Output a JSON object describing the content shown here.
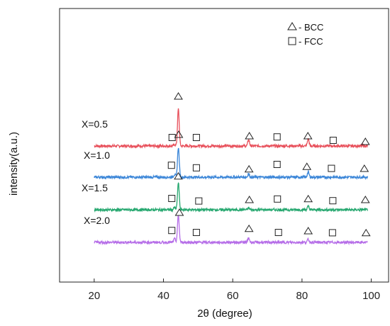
{
  "chart_data": {
    "type": "line",
    "xlabel": "2θ (degree)",
    "ylabel": "intensity(a.u.)",
    "xlim": [
      10,
      105
    ],
    "xticks": [
      20,
      40,
      60,
      80,
      100
    ],
    "grid": false,
    "legend_position": "top-right",
    "legend": [
      {
        "marker": "triangle",
        "label": "- BCC"
      },
      {
        "marker": "square",
        "label": "- FCC"
      }
    ],
    "x_range": [
      20,
      99
    ],
    "series": [
      {
        "name": "X=0.5",
        "color": "#e8505b",
        "baseline_offset": 3.4,
        "peaks": [
          {
            "x": 43.2,
            "height": 0.05
          },
          {
            "x": 44.3,
            "height": 1.3
          },
          {
            "x": 64.6,
            "height": 0.22
          },
          {
            "x": 81.8,
            "height": 0.25
          }
        ],
        "markers": [
          {
            "type": "square",
            "x": 42.5,
            "y": 0.1
          },
          {
            "type": "triangle",
            "x": 44.3,
            "y": 1.55
          },
          {
            "type": "square",
            "x": 49.5,
            "y": 0.1
          },
          {
            "type": "triangle",
            "x": 64.8,
            "y": 0.15
          },
          {
            "type": "square",
            "x": 72.8,
            "y": 0.12
          },
          {
            "type": "triangle",
            "x": 81.7,
            "y": 0.15
          },
          {
            "type": "square",
            "x": 89.0,
            "y": 0.0
          },
          {
            "type": "triangle",
            "x": 98.3,
            "y": -0.05
          }
        ]
      },
      {
        "name": "X=1.0",
        "color": "#3b86d8",
        "baseline_offset": 2.3,
        "peaks": [
          {
            "x": 43.2,
            "height": 0.1
          },
          {
            "x": 44.3,
            "height": 1.05
          },
          {
            "x": 64.6,
            "height": 0.12
          },
          {
            "x": 81.8,
            "height": 0.18
          }
        ],
        "markers": [
          {
            "type": "square",
            "x": 42.3,
            "y": 0.22
          },
          {
            "type": "triangle",
            "x": 44.4,
            "y": 1.3
          },
          {
            "type": "square",
            "x": 49.5,
            "y": 0.13
          },
          {
            "type": "triangle",
            "x": 64.7,
            "y": 0.08
          },
          {
            "type": "square",
            "x": 72.8,
            "y": 0.25
          },
          {
            "type": "triangle",
            "x": 81.4,
            "y": 0.17
          },
          {
            "type": "square",
            "x": 88.5,
            "y": 0.11
          },
          {
            "type": "triangle",
            "x": 98.0,
            "y": 0.1
          }
        ]
      },
      {
        "name": "X=1.5",
        "color": "#27a870",
        "baseline_offset": 1.15,
        "peaks": [
          {
            "x": 43.2,
            "height": 0.08
          },
          {
            "x": 44.3,
            "height": 0.95
          },
          {
            "x": 64.6,
            "height": 0.07
          },
          {
            "x": 81.8,
            "height": 0.12
          }
        ],
        "markers": [
          {
            "type": "square",
            "x": 42.4,
            "y": 0.2
          },
          {
            "type": "triangle",
            "x": 44.3,
            "y": 0.98
          },
          {
            "type": "square",
            "x": 50.2,
            "y": 0.11
          },
          {
            "type": "triangle",
            "x": 64.8,
            "y": 0.15
          },
          {
            "type": "square",
            "x": 72.9,
            "y": 0.18
          },
          {
            "type": "triangle",
            "x": 81.8,
            "y": 0.18
          },
          {
            "type": "square",
            "x": 88.9,
            "y": 0.12
          },
          {
            "type": "triangle",
            "x": 98.3,
            "y": 0.15
          }
        ]
      },
      {
        "name": "X=2.0",
        "color": "#b66ee8",
        "baseline_offset": 0.0,
        "peaks": [
          {
            "x": 43.2,
            "height": 0.12
          },
          {
            "x": 44.3,
            "height": 0.95
          },
          {
            "x": 64.6,
            "height": 0.16
          },
          {
            "x": 81.8,
            "height": 0.1
          }
        ],
        "markers": [
          {
            "type": "square",
            "x": 42.4,
            "y": 0.22
          },
          {
            "type": "triangle",
            "x": 44.6,
            "y": 0.85
          },
          {
            "type": "square",
            "x": 49.5,
            "y": 0.15
          },
          {
            "type": "triangle",
            "x": 64.7,
            "y": 0.28
          },
          {
            "type": "square",
            "x": 73.2,
            "y": 0.15
          },
          {
            "type": "triangle",
            "x": 81.8,
            "y": 0.2
          },
          {
            "type": "square",
            "x": 88.8,
            "y": 0.14
          },
          {
            "type": "triangle",
            "x": 98.5,
            "y": 0.13
          }
        ]
      }
    ]
  }
}
